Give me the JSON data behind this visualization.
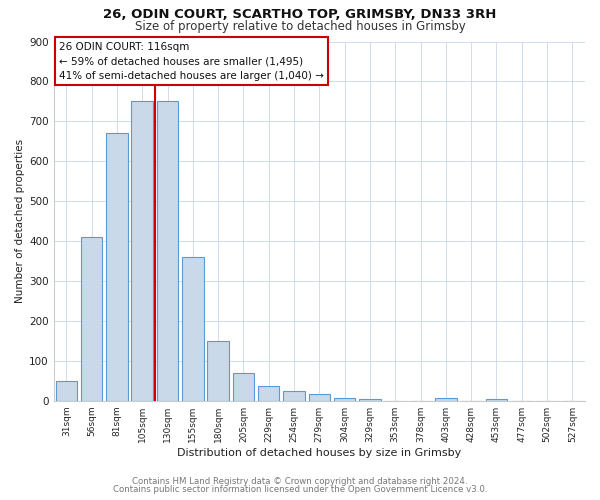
{
  "title": "26, ODIN COURT, SCARTHO TOP, GRIMSBY, DN33 3RH",
  "subtitle": "Size of property relative to detached houses in Grimsby",
  "xlabel": "Distribution of detached houses by size in Grimsby",
  "ylabel": "Number of detached properties",
  "categories": [
    "31sqm",
    "56sqm",
    "81sqm",
    "105sqm",
    "130sqm",
    "155sqm",
    "180sqm",
    "205sqm",
    "229sqm",
    "254sqm",
    "279sqm",
    "304sqm",
    "329sqm",
    "353sqm",
    "378sqm",
    "403sqm",
    "428sqm",
    "453sqm",
    "477sqm",
    "502sqm",
    "527sqm"
  ],
  "values": [
    50,
    410,
    670,
    750,
    750,
    360,
    150,
    70,
    37,
    25,
    18,
    8,
    5,
    0,
    0,
    8,
    0,
    5,
    0,
    0,
    0
  ],
  "bar_color": "#c9d9ea",
  "bar_edge_color": "#5b9bd5",
  "vline_x_pos": 3.5,
  "vline_color": "#cc0000",
  "annotation_title": "26 ODIN COURT: 116sqm",
  "annotation_line1": "← 59% of detached houses are smaller (1,495)",
  "annotation_line2": "41% of semi-detached houses are larger (1,040) →",
  "ylim_max": 900,
  "yticks": [
    0,
    100,
    200,
    300,
    400,
    500,
    600,
    700,
    800,
    900
  ],
  "footer1": "Contains HM Land Registry data © Crown copyright and database right 2024.",
  "footer2": "Contains public sector information licensed under the Open Government Licence v3.0.",
  "fig_bg": "#ffffff",
  "plot_bg": "#ffffff",
  "grid_color": "#c8d8e8"
}
